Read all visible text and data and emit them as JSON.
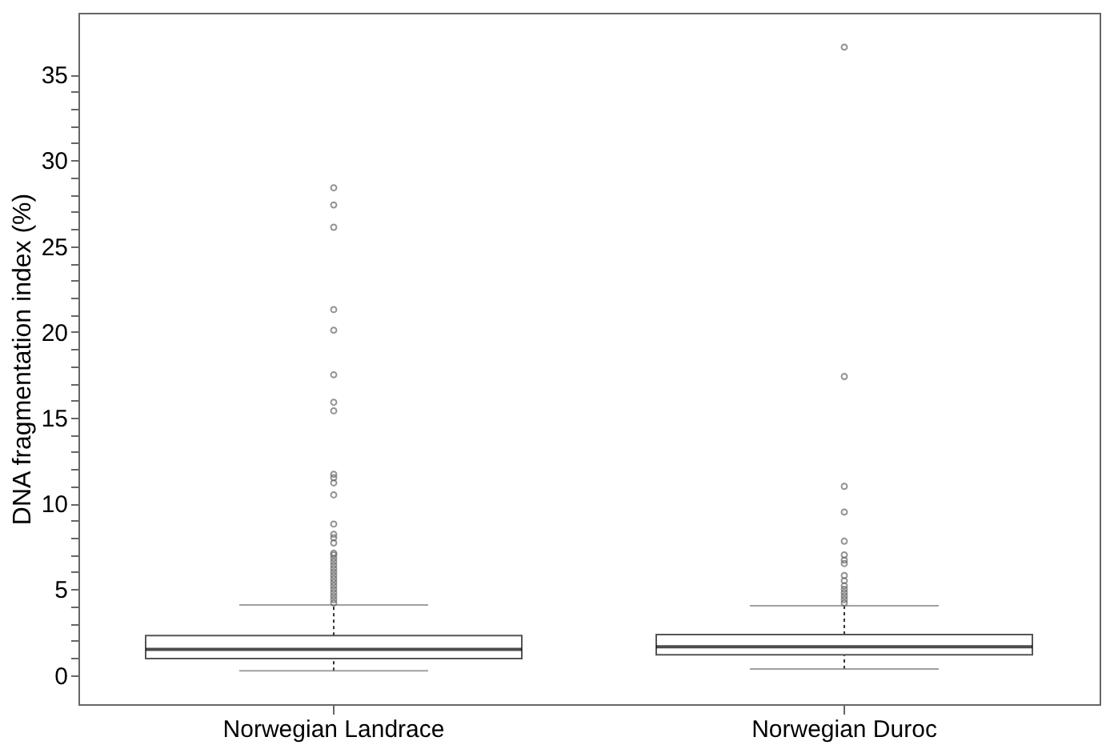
{
  "chart_data": {
    "type": "box",
    "ylabel": "DNA fragmentation index (%)",
    "categories": [
      "Norwegian Landrace",
      "Norwegian Duroc"
    ],
    "boxes": [
      {
        "low": 0.25,
        "q1": 0.96,
        "median": 1.5,
        "q3": 2.3,
        "high": 4.08,
        "outliers": [
          28.4,
          27.4,
          26.1,
          21.3,
          20.1,
          17.5,
          15.9,
          15.4,
          11.7,
          11.5,
          11.2,
          10.5,
          8.8,
          8.2,
          8.0,
          7.7,
          7.1,
          7.0,
          6.8,
          6.6,
          6.4,
          6.2,
          6.0,
          5.8,
          5.6,
          5.4,
          5.2,
          5.0,
          4.8,
          4.6,
          4.4,
          4.2
        ]
      },
      {
        "low": 0.35,
        "q1": 1.18,
        "median": 1.65,
        "q3": 2.36,
        "high": 4.04,
        "outliers": [
          36.6,
          17.4,
          11.0,
          9.5,
          7.8,
          7.0,
          6.7,
          6.5,
          5.8,
          5.5,
          5.2,
          5.0,
          4.8,
          4.6,
          4.4,
          4.2
        ]
      }
    ],
    "ylim": [
      -1.7,
      38.6
    ],
    "yticks": [
      0,
      {
        "value": 1,
        "label": null
      },
      {
        "value": 2,
        "label": null
      },
      {
        "value": 3,
        "label": null
      },
      {
        "value": 4,
        "label": null
      },
      5,
      {
        "value": 6,
        "label": null
      },
      {
        "value": 7,
        "label": null
      },
      {
        "value": 8,
        "label": null
      },
      {
        "value": 9,
        "label": null
      },
      10,
      {
        "value": 11,
        "label": null
      },
      {
        "value": 12,
        "label": null
      },
      {
        "value": 13,
        "label": null
      },
      {
        "value": 14,
        "label": null
      },
      15,
      {
        "value": 16,
        "label": null
      },
      {
        "value": 17,
        "label": null
      },
      {
        "value": 18,
        "label": null
      },
      {
        "value": 19,
        "label": null
      },
      20,
      {
        "value": 21,
        "label": null
      },
      {
        "value": 22,
        "label": null
      },
      {
        "value": 23,
        "label": null
      },
      {
        "value": 24,
        "label": null
      },
      25,
      {
        "value": 26,
        "label": null
      },
      {
        "value": 27,
        "label": null
      },
      {
        "value": 28,
        "label": null
      },
      {
        "value": 29,
        "label": null
      },
      30,
      {
        "value": 31,
        "label": null
      },
      {
        "value": 32,
        "label": null
      },
      {
        "value": 33,
        "label": null
      },
      {
        "value": 34,
        "label": null
      },
      35
    ],
    "grid": false
  }
}
